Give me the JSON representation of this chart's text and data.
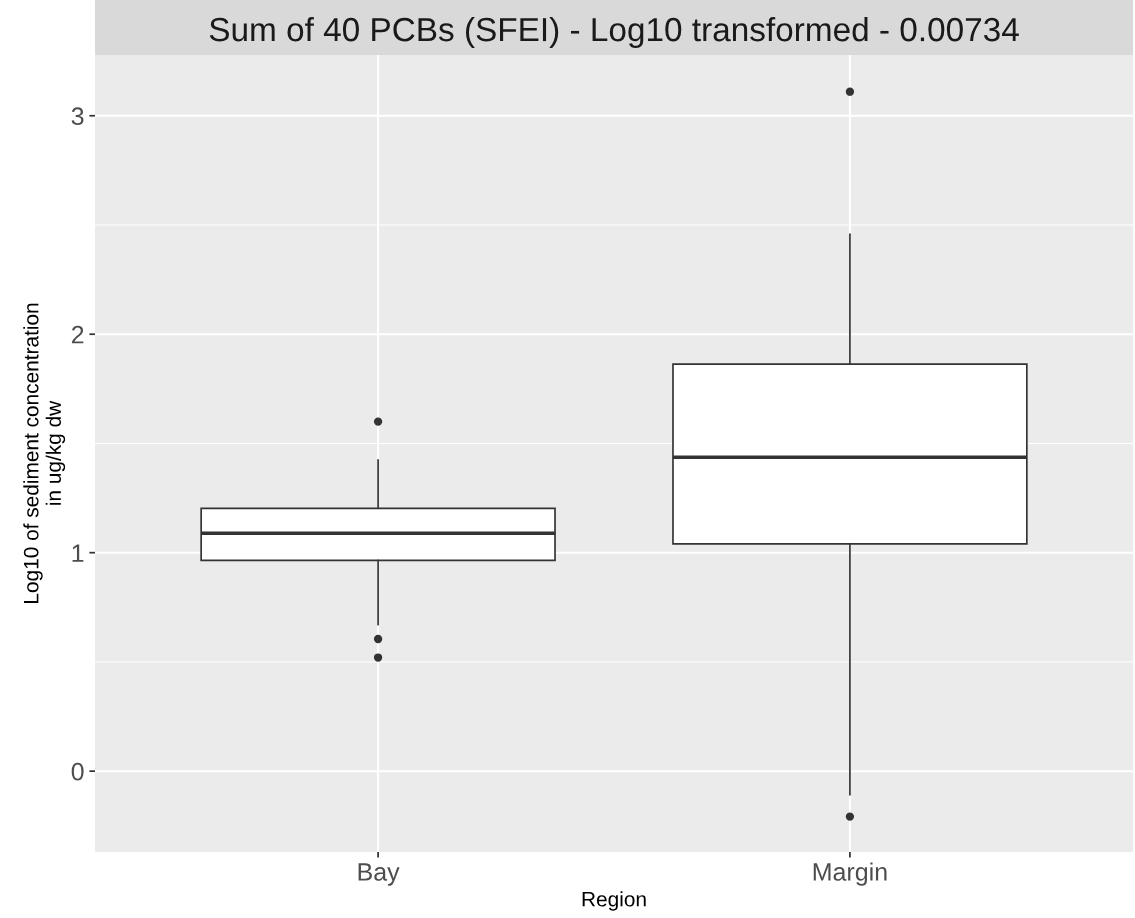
{
  "chart_data": {
    "type": "box",
    "title": "Sum of 40 PCBs (SFEI) - Log10 transformed - 0.00734",
    "xlabel": "Region",
    "ylabel": "Log10 of sediment concentration\nin ug/kg dw",
    "categories": [
      "Bay",
      "Margin"
    ],
    "boxes": [
      {
        "low": 0.67,
        "q1": 0.965,
        "median": 1.089,
        "q3": 1.203,
        "high": 1.425,
        "outliers": [
          1.6,
          0.605,
          0.52
        ]
      },
      {
        "low": -0.109,
        "q1": 1.04,
        "median": 1.437,
        "q3": 1.863,
        "high": 2.458,
        "outliers": [
          3.11,
          -0.208
        ]
      }
    ],
    "ylim": [
      -0.37,
      3.278
    ],
    "yticks": [
      0,
      1,
      2,
      3
    ],
    "grid": true
  }
}
